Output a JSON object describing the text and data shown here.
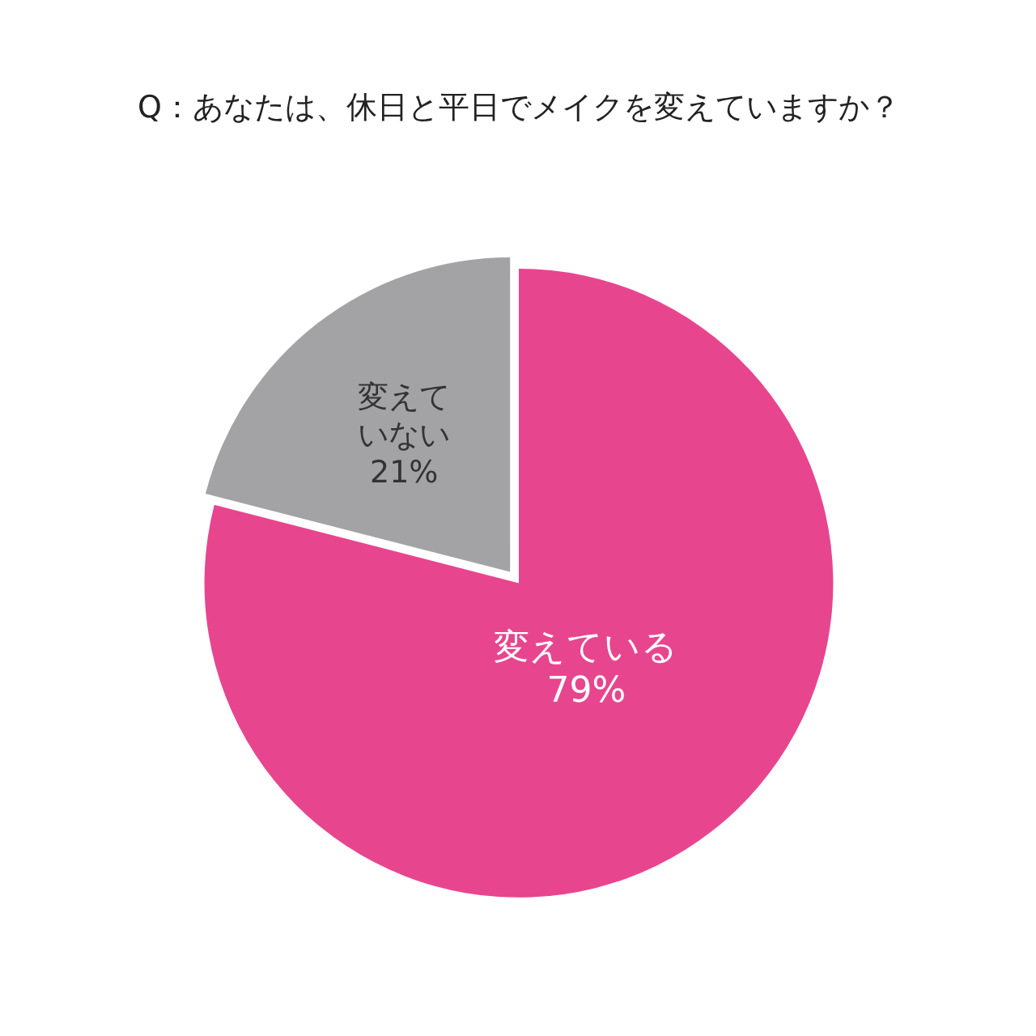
{
  "chart_data": {
    "type": "pie",
    "title": "Q：あなたは、休日と平日でメイクを変えていますか？",
    "categories": [
      "変えている",
      "変えていない"
    ],
    "values": [
      79,
      21
    ],
    "colors": [
      "#e8458f",
      "#a3a3a5"
    ],
    "value_labels": [
      "79%",
      "21%"
    ]
  }
}
